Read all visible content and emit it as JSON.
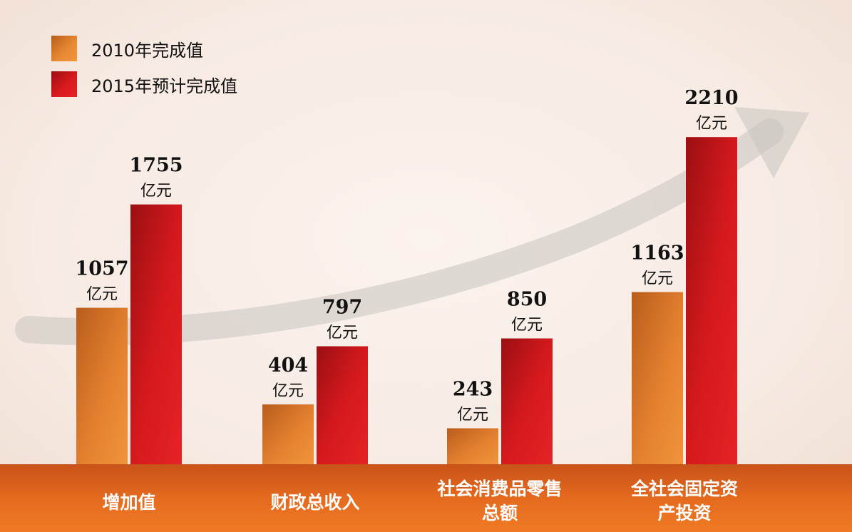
{
  "chart_data": {
    "type": "bar",
    "categories": [
      [
        "增加值"
      ],
      [
        "财政总收入"
      ],
      [
        "社会消费品零售",
        "总额"
      ],
      [
        "全社会固定资",
        "产投资"
      ]
    ],
    "series": [
      {
        "name": "2010年完成值",
        "values": [
          1057,
          404,
          243,
          1163
        ],
        "color": "#e8842f"
      },
      {
        "name": "2015年预计完成值",
        "values": [
          1755,
          797,
          850,
          2210
        ],
        "color": "#d81a1e"
      }
    ],
    "value_labels": {
      "series0": [
        "1057",
        "404",
        "243",
        "1163"
      ],
      "series1": [
        "1755",
        "797",
        "850",
        "2210"
      ]
    },
    "unit_label": "亿元",
    "ylim": [
      0,
      2500
    ],
    "axis_band_color": "#e0651a",
    "legend_position": "top-left"
  }
}
